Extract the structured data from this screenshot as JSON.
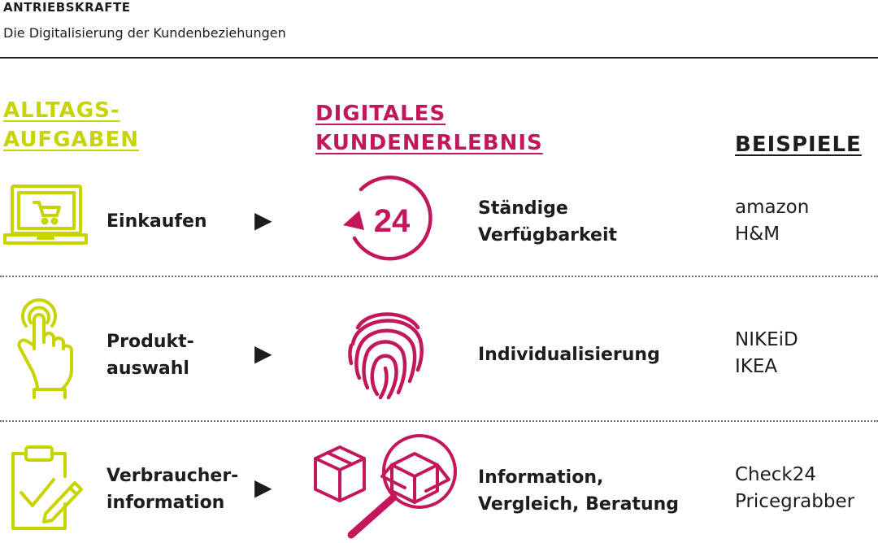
{
  "header": {
    "title": "ANTRIEBSKRAFTE",
    "subtitle": "Die Digitalisierung der Kundenbeziehungen"
  },
  "columns": {
    "tasks": [
      "ALLTAGS-",
      "AUFGABEN"
    ],
    "experience": [
      "DIGITALES",
      "KUNDENERLEBNIS"
    ],
    "examples": "BEISPIELE"
  },
  "rows": [
    {
      "task": [
        "Einkaufen"
      ],
      "task_icon": "laptop-cart-icon",
      "experience": [
        "Ständige",
        "Verfügbarkeit"
      ],
      "experience_icon": "clock-24-icon",
      "experience_icon_text": "24",
      "examples": [
        "amazon",
        "H&M"
      ]
    },
    {
      "task": [
        "Produkt-",
        "auswahl"
      ],
      "task_icon": "touch-hand-icon",
      "experience": [
        "Individualisierung"
      ],
      "experience_icon": "fingerprint-icon",
      "examples": [
        "NIKEiD",
        "IKEA"
      ]
    },
    {
      "task": [
        "Verbraucher-",
        "information"
      ],
      "task_icon": "clipboard-check-icon",
      "experience": [
        "Information,",
        "Vergleich, Beratung"
      ],
      "experience_icon": "boxes-magnifier-icon",
      "examples": [
        "Check24",
        "Pricegrabber"
      ]
    }
  ],
  "arrow_glyph": "▶",
  "colors": {
    "green": "#c8d400",
    "magenta": "#c2185b",
    "text": "#1d1d1b"
  }
}
